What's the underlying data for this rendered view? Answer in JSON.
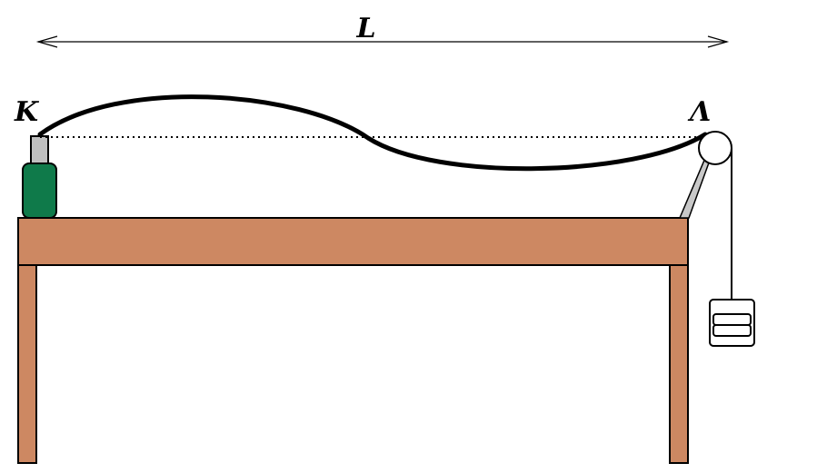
{
  "labels": {
    "length": "L",
    "left_end": "K",
    "right_end": "Λ"
  },
  "colors": {
    "table": "#cd8862",
    "vibrator_body": "#0f7a4a",
    "vibrator_cap": "#bfbfbf",
    "string": "#000000",
    "clamp": "#c8c8c8",
    "background": "#ffffff"
  },
  "icons": {
    "pulley": "pulley-icon",
    "weight": "hanging-weight-icon",
    "vibrator": "vibrator-icon"
  }
}
